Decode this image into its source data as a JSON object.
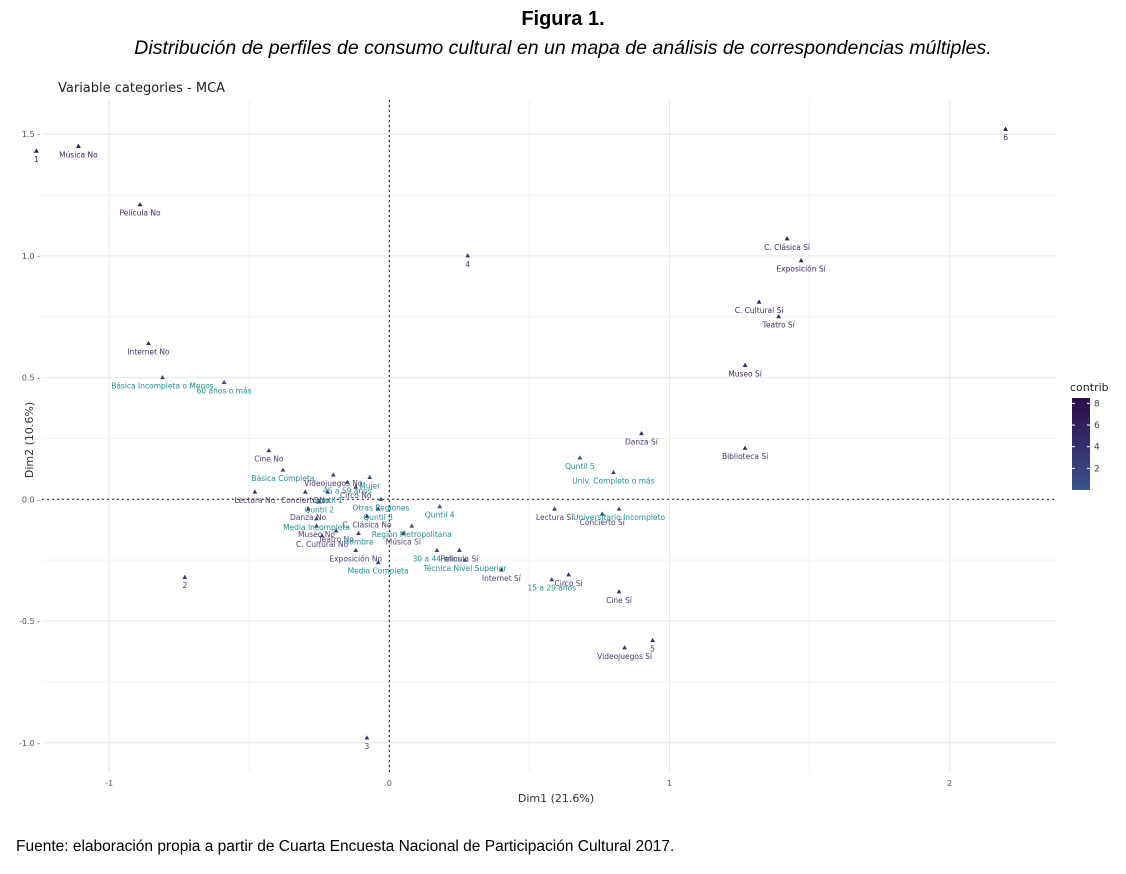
{
  "figure": {
    "title": "Figura 1.",
    "subtitle": "Distribución de perfiles de consumo cultural en un mapa de análisis de correspondencias múltiples.",
    "source": "Fuente: elaboración propia a partir de Cuarta Encuesta Nacional de Participación Cultural 2017."
  },
  "chart_data": {
    "type": "scatter",
    "title": "Variable categories - MCA",
    "xlabel": "Dim1 (21.6%)",
    "ylabel": "Dim2 (10.6%)",
    "xlim": [
      -1.24,
      2.38
    ],
    "ylim": [
      -1.12,
      1.64
    ],
    "xticks": [
      -1,
      0,
      1,
      2
    ],
    "xtick_labels": [
      "-1",
      "0",
      "1",
      "2"
    ],
    "yticks": [
      -1.0,
      -0.5,
      0.0,
      0.5,
      1.0,
      1.5
    ],
    "ytick_labels": [
      "-1.0 -",
      "-0.5 -",
      "0.0 -",
      "0.5 -",
      "1.0 -",
      "1.5 -"
    ],
    "grid": true,
    "reference_lines": {
      "x": 0,
      "y": 0,
      "style": "dashed"
    },
    "color_variable": "contrib",
    "legend": {
      "title": "contrib",
      "position": "right",
      "range": [
        0,
        8.5
      ],
      "ticks": [
        2,
        4,
        6,
        8
      ],
      "tick_labels": [
        "2",
        "4",
        "6",
        "8"
      ],
      "low_color": "#3b528b",
      "high_color": "#2b0d4b"
    },
    "low_contrib_label_color": "#21908c",
    "high_contrib_label_color": "#3a1e5c",
    "points": [
      {
        "label": "Música No",
        "x": -1.11,
        "y": 1.45,
        "contrib": 7.5
      },
      {
        "label": "1",
        "x": -1.26,
        "y": 1.43,
        "contrib": 7.8
      },
      {
        "label": "Película No",
        "x": -0.89,
        "y": 1.21,
        "contrib": 6.5
      },
      {
        "label": "4",
        "x": 0.28,
        "y": 1.0,
        "contrib": 3.8
      },
      {
        "label": "6",
        "x": 2.2,
        "y": 1.52,
        "contrib": 7.8
      },
      {
        "label": "C. Clásica Sí",
        "x": 1.42,
        "y": 1.07,
        "contrib": 6.3
      },
      {
        "label": "Exposición Sí",
        "x": 1.47,
        "y": 0.98,
        "contrib": 6.8
      },
      {
        "label": "C. Cultural Sí",
        "x": 1.32,
        "y": 0.81,
        "contrib": 6.5
      },
      {
        "label": "Teatro Sí",
        "x": 1.39,
        "y": 0.75,
        "contrib": 6.0
      },
      {
        "label": "Internet No",
        "x": -0.86,
        "y": 0.64,
        "contrib": 4.5
      },
      {
        "label": "Básica Incompleta o Menos",
        "x": -0.81,
        "y": 0.5,
        "contrib": 1.5
      },
      {
        "label": "60 años o más",
        "x": -0.59,
        "y": 0.48,
        "contrib": 1.3
      },
      {
        "label": "Museo Sí",
        "x": 1.27,
        "y": 0.55,
        "contrib": 5.5
      },
      {
        "label": "Danza Sí",
        "x": 0.9,
        "y": 0.27,
        "contrib": 4.0
      },
      {
        "label": "Biblioteca Sí",
        "x": 1.27,
        "y": 0.21,
        "contrib": 4.5
      },
      {
        "label": "Quntil 5",
        "x": 0.68,
        "y": 0.17,
        "contrib": 1.2
      },
      {
        "label": "Univ. Completo o más",
        "x": 0.8,
        "y": 0.11,
        "contrib": 1.2
      },
      {
        "label": "Cine No",
        "x": -0.43,
        "y": 0.2,
        "contrib": 3.0
      },
      {
        "label": "Básica Completa",
        "x": -0.38,
        "y": 0.12,
        "contrib": 1.0
      },
      {
        "label": "Videojuegos No",
        "x": -0.2,
        "y": 0.1,
        "contrib": 2.5
      },
      {
        "label": "45 a 59 años",
        "x": -0.15,
        "y": 0.07,
        "contrib": 1.0
      },
      {
        "label": "Mujer",
        "x": -0.07,
        "y": 0.09,
        "contrib": 1.0
      },
      {
        "label": "Circo No",
        "x": -0.12,
        "y": 0.05,
        "contrib": 2.0
      },
      {
        "label": "Lectura No",
        "x": -0.48,
        "y": 0.03,
        "contrib": 3.0
      },
      {
        "label": "Concierto No",
        "x": -0.3,
        "y": 0.03,
        "contrib": 2.5
      },
      {
        "label": "Quntil 1",
        "x": -0.22,
        "y": 0.03,
        "contrib": 1.0
      },
      {
        "label": "Otras Regiones",
        "x": -0.03,
        "y": 0.0,
        "contrib": 0.8
      },
      {
        "label": "Quntil 2",
        "x": -0.25,
        "y": -0.01,
        "contrib": 1.0
      },
      {
        "label": "Danza No",
        "x": -0.29,
        "y": -0.04,
        "contrib": 2.0
      },
      {
        "label": "Quntil 3",
        "x": -0.04,
        "y": -0.04,
        "contrib": 0.8
      },
      {
        "label": "Media Incompleta",
        "x": -0.26,
        "y": -0.08,
        "contrib": 1.0
      },
      {
        "label": "C. Clásica No",
        "x": -0.08,
        "y": -0.07,
        "contrib": 2.0
      },
      {
        "label": "Quntil 4",
        "x": 0.18,
        "y": -0.03,
        "contrib": 0.8
      },
      {
        "label": "Museo No",
        "x": -0.26,
        "y": -0.11,
        "contrib": 2.0
      },
      {
        "label": "Teatro No",
        "x": -0.19,
        "y": -0.13,
        "contrib": 2.0
      },
      {
        "label": "Región Metropolitana",
        "x": 0.08,
        "y": -0.11,
        "contrib": 1.0
      },
      {
        "label": "Hombre",
        "x": -0.11,
        "y": -0.14,
        "contrib": 1.0
      },
      {
        "label": "Música Sí",
        "x": 0.05,
        "y": -0.14,
        "contrib": 2.0
      },
      {
        "label": "C. Cultural No",
        "x": -0.24,
        "y": -0.15,
        "contrib": 2.0
      },
      {
        "label": "Exposición No",
        "x": -0.12,
        "y": -0.21,
        "contrib": 2.0
      },
      {
        "label": "30 a 44 años",
        "x": 0.17,
        "y": -0.21,
        "contrib": 1.0
      },
      {
        "label": "Película Sí",
        "x": 0.25,
        "y": -0.21,
        "contrib": 2.0
      },
      {
        "label": "Media Completa",
        "x": -0.04,
        "y": -0.26,
        "contrib": 1.0
      },
      {
        "label": "Técnica Nivel Superior",
        "x": 0.27,
        "y": -0.25,
        "contrib": 1.0
      },
      {
        "label": "Internet Sí",
        "x": 0.4,
        "y": -0.29,
        "contrib": 2.5
      },
      {
        "label": "Lectura Sí",
        "x": 0.59,
        "y": -0.04,
        "contrib": 2.5
      },
      {
        "label": "Concierto Sí",
        "x": 0.76,
        "y": -0.06,
        "contrib": 3.0
      },
      {
        "label": "Universitario Incompleto",
        "x": 0.82,
        "y": -0.04,
        "contrib": 1.5
      },
      {
        "label": "2",
        "x": -0.73,
        "y": -0.32,
        "contrib": 3.5
      },
      {
        "label": "Circo Sí",
        "x": 0.64,
        "y": -0.31,
        "contrib": 3.5
      },
      {
        "label": "15 a 29 años",
        "x": 0.58,
        "y": -0.33,
        "contrib": 1.5
      },
      {
        "label": "Cine Sí",
        "x": 0.82,
        "y": -0.38,
        "contrib": 3.5
      },
      {
        "label": "5",
        "x": 0.94,
        "y": -0.58,
        "contrib": 4.5
      },
      {
        "label": "Videojuegos Sí",
        "x": 0.84,
        "y": -0.61,
        "contrib": 4.0
      },
      {
        "label": "3",
        "x": -0.08,
        "y": -0.98,
        "contrib": 3.5
      }
    ]
  }
}
